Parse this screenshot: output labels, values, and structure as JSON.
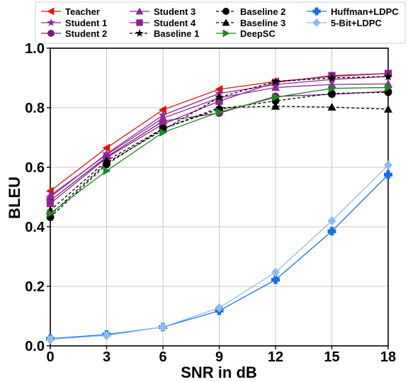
{
  "chart_data": {
    "type": "line",
    "xlabel": "SNR in dB",
    "ylabel": "BLEU",
    "x": [
      0,
      3,
      6,
      9,
      12,
      15,
      18
    ],
    "xlim": [
      0,
      18
    ],
    "ylim": [
      0.0,
      1.0
    ],
    "xticks": [
      "0",
      "3",
      "6",
      "9",
      "12",
      "15",
      "18"
    ],
    "yticks": [
      "0.0",
      "0.2",
      "0.4",
      "0.6",
      "0.8",
      "1.0"
    ],
    "grid": true,
    "legend_position": "top",
    "series": [
      {
        "name": "Teacher",
        "color": "#e8100c",
        "marker": "triangle-left",
        "dash": "solid",
        "values": [
          0.52,
          0.665,
          0.793,
          0.862,
          0.888,
          0.905,
          0.915
        ]
      },
      {
        "name": "Student 1",
        "color": "#8b2a8e",
        "marker": "star",
        "dash": "solid",
        "values": [
          0.5,
          0.645,
          0.775,
          0.848,
          0.878,
          0.895,
          0.905
        ]
      },
      {
        "name": "Student 2",
        "color": "#7a1c7f",
        "marker": "circle",
        "dash": "solid",
        "values": [
          0.488,
          0.635,
          0.755,
          0.782,
          0.838,
          0.845,
          0.855
        ]
      },
      {
        "name": "Student 3",
        "color": "#8a2d9a",
        "marker": "triangle-up",
        "dash": "solid",
        "values": [
          0.505,
          0.642,
          0.765,
          0.833,
          0.868,
          0.878,
          0.88
        ]
      },
      {
        "name": "Student 4",
        "color": "#8e238e",
        "marker": "square",
        "dash": "solid",
        "values": [
          0.478,
          0.632,
          0.745,
          0.822,
          0.885,
          0.908,
          0.915
        ]
      },
      {
        "name": "Baseline 1",
        "color": "#000000",
        "marker": "star",
        "dash": "dashed",
        "values": [
          0.44,
          0.615,
          0.725,
          0.835,
          0.888,
          0.9,
          0.905
        ]
      },
      {
        "name": "Baseline 2",
        "color": "#000000",
        "marker": "circle",
        "dash": "dashed",
        "values": [
          0.432,
          0.61,
          0.73,
          0.795,
          0.823,
          0.848,
          0.852
        ]
      },
      {
        "name": "Baseline 3",
        "color": "#000000",
        "marker": "triangle-up",
        "dash": "dashed",
        "values": [
          0.455,
          0.622,
          0.73,
          0.8,
          0.805,
          0.802,
          0.795
        ]
      },
      {
        "name": "DeepSC",
        "color": "#1e8a1e",
        "marker": "triangle-right",
        "dash": "solid",
        "values": [
          0.445,
          0.588,
          0.717,
          0.785,
          0.835,
          0.865,
          0.868
        ]
      },
      {
        "name": "Huffman+LDPC",
        "color": "#1a6fe0",
        "marker": "plus",
        "dash": "solid",
        "values": [
          0.024,
          0.038,
          0.063,
          0.118,
          0.222,
          0.385,
          0.575
        ]
      },
      {
        "name": "5-Bit+LDPC",
        "color": "#8fbbf0",
        "marker": "diamond",
        "dash": "solid",
        "values": [
          0.022,
          0.035,
          0.063,
          0.128,
          0.247,
          0.42,
          0.607
        ]
      }
    ]
  }
}
